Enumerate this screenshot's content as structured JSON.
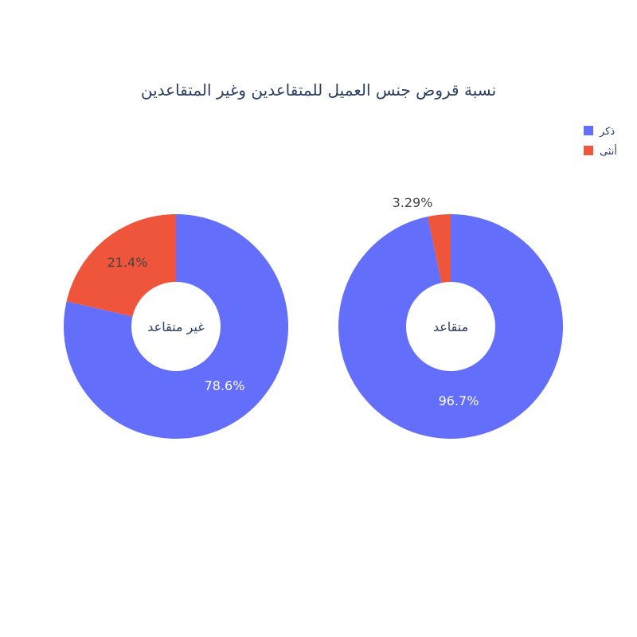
{
  "chart_data": {
    "type": "pie",
    "title": "نسبة قروض جنس العميل للمتقاعدين وغير المتقاعدين",
    "legend": {
      "placement": "top-right",
      "items": [
        {
          "label": "ذكر",
          "color": "#636efa"
        },
        {
          "label": "أنثى",
          "color": "#ef553b"
        }
      ]
    },
    "charts": [
      {
        "name": "غير متقاعد",
        "slices": [
          {
            "label": "ذكر",
            "value": 78.6,
            "color": "#636efa",
            "text": "78.6%"
          },
          {
            "label": "أنثى",
            "value": 21.4,
            "color": "#ef553b",
            "text": "21.4%"
          }
        ]
      },
      {
        "name": "متقاعد",
        "slices": [
          {
            "label": "ذكر",
            "value": 96.7,
            "color": "#636efa",
            "text": "96.7%"
          },
          {
            "label": "أنثى",
            "value": 3.29,
            "color": "#ef553b",
            "text": "3.29%"
          }
        ]
      }
    ]
  }
}
